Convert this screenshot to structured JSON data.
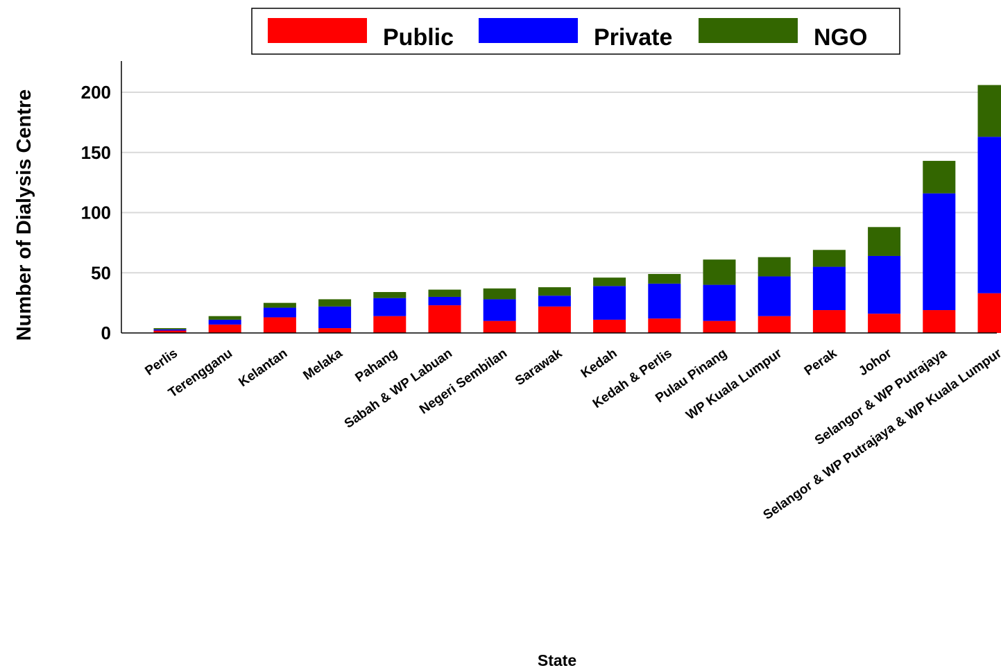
{
  "chart_data": {
    "type": "bar",
    "stacked": true,
    "title": "",
    "xlabel": "State",
    "ylabel": "Number of Dialysis Centre",
    "ylim": [
      0,
      225
    ],
    "yticks": [
      0,
      50,
      100,
      150,
      200
    ],
    "grid": true,
    "legend_position": "top",
    "categories": [
      "Perlis",
      "Terengganu",
      "Kelantan",
      "Melaka",
      "Pahang",
      "Sabah & WP Labuan",
      "Negeri Sembilan",
      "Sarawak",
      "Kedah",
      "Kedah & Perlis",
      "Pulau Pinang",
      "WP Kuala Lumpur",
      "Perak",
      "Johor",
      "Selangor & WP Putrajaya",
      "Selangor & WP Putrajaya & WP Kuala Lumpur"
    ],
    "series": [
      {
        "name": "Public",
        "color": "#ff0000",
        "values": [
          2,
          7,
          13,
          4,
          14,
          23,
          10,
          22,
          11,
          12,
          10,
          14,
          19,
          16,
          19,
          33
        ]
      },
      {
        "name": "Private",
        "color": "#0000ff",
        "values": [
          1,
          4,
          8,
          18,
          15,
          7,
          18,
          9,
          28,
          29,
          30,
          33,
          36,
          48,
          97,
          130
        ]
      },
      {
        "name": "NGO",
        "color": "#336600",
        "values": [
          1,
          3,
          4,
          6,
          5,
          6,
          9,
          7,
          7,
          8,
          21,
          16,
          14,
          24,
          27,
          43
        ]
      }
    ]
  }
}
